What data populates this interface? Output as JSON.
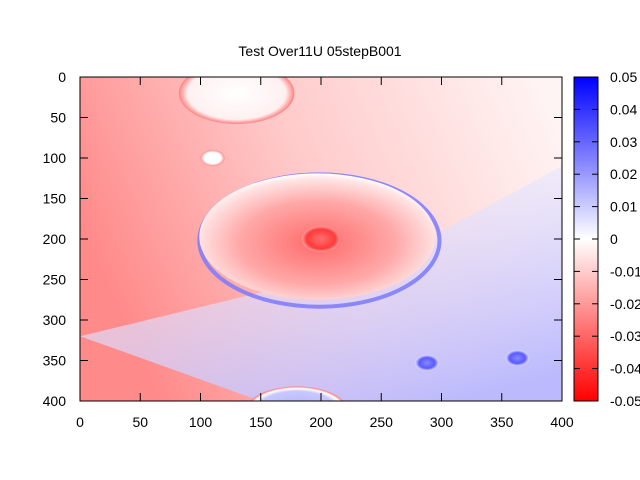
{
  "chart_data": {
    "type": "heatmap",
    "title": "Test Over11U 05stepB001",
    "xlabel": "",
    "ylabel": "",
    "xlim": [
      0,
      400
    ],
    "ylim": [
      400,
      0
    ],
    "x_ticks": [
      "0",
      "50",
      "100",
      "150",
      "200",
      "250",
      "300",
      "350",
      "400"
    ],
    "y_ticks": [
      "0",
      "50",
      "100",
      "150",
      "200",
      "250",
      "300",
      "350",
      "400"
    ],
    "colorbar": {
      "range": [
        -0.05,
        0.05
      ],
      "ticks": [
        "0.05",
        "0.04",
        "0.03",
        "0.02",
        "0.01",
        "0",
        "-0.01",
        "-0.02",
        "-0.03",
        "-0.04",
        "-0.05"
      ],
      "colors": {
        "high": "#0000ff",
        "mid": "#ffffff",
        "low": "#ff0000"
      }
    },
    "background_gradient": [
      {
        "x": 0,
        "y": 150,
        "value": -0.025
      },
      {
        "x": 400,
        "y": 0,
        "value": 0.0
      },
      {
        "x": 330,
        "y": 330,
        "value": 0.015
      }
    ],
    "features": [
      {
        "label": "large-disc",
        "cx": 197,
        "cy": 197,
        "rx": 98,
        "ry": 78,
        "value": -0.018,
        "edge": "bright-blue-rim"
      },
      {
        "label": "core-spot",
        "cx": 200,
        "cy": 200,
        "r": 16,
        "value": -0.04
      },
      {
        "label": "top-disc",
        "cx": 130,
        "cy": 20,
        "rx": 48,
        "ry": 38,
        "value": 0.0
      },
      {
        "label": "small-white-spot",
        "cx": 110,
        "cy": 100,
        "r": 10,
        "value": 0.0
      },
      {
        "label": "blue-spot-1",
        "cx": 288,
        "cy": 353,
        "r": 10,
        "value": 0.035
      },
      {
        "label": "blue-spot-2",
        "cx": 363,
        "cy": 347,
        "r": 10,
        "value": 0.035
      },
      {
        "label": "bottom-disc",
        "cx": 180,
        "cy": 412,
        "rx": 42,
        "ry": 30,
        "value": 0.02
      }
    ]
  }
}
